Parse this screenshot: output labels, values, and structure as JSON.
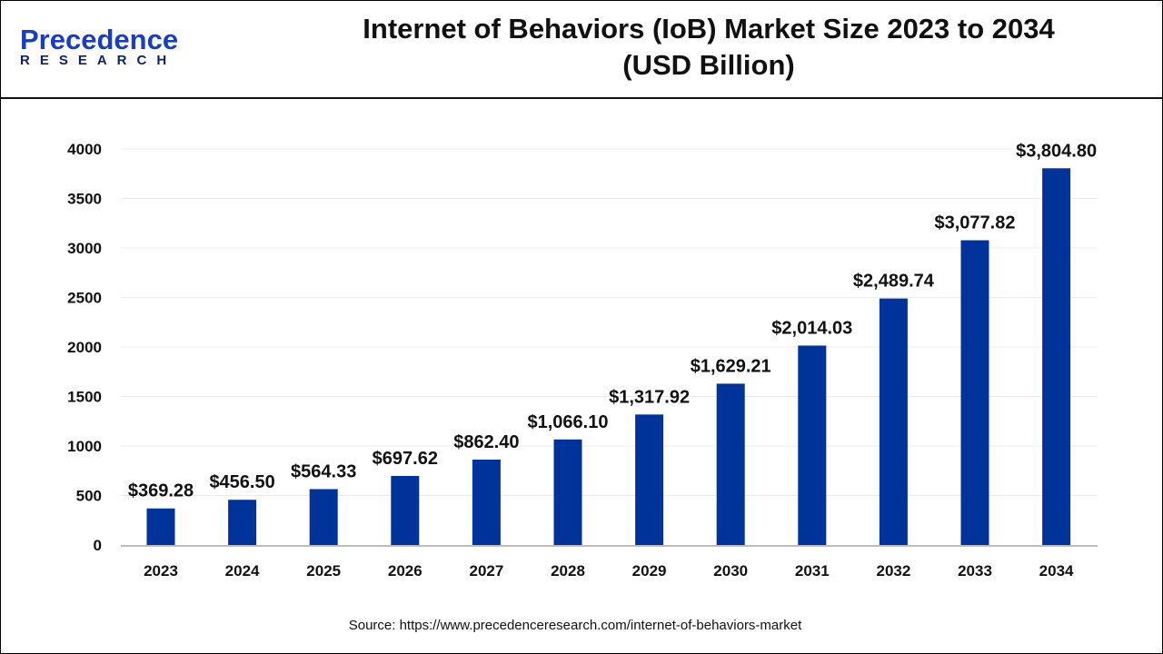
{
  "logo": {
    "brand": "Precedence",
    "sub": "RESEARCH"
  },
  "header": {
    "title_line1": "Internet of Behaviors (IoB) Market Size 2023 to 2034",
    "title_line2": "(USD Billion)"
  },
  "source": "Source: https://www.precedenceresearch.com/internet-of-behaviors-market",
  "chart_data": {
    "type": "bar",
    "title": "Internet of Behaviors (IoB) Market Size 2023 to 2034 (USD Billion)",
    "categories": [
      "2023",
      "2024",
      "2025",
      "2026",
      "2027",
      "2028",
      "2029",
      "2030",
      "2031",
      "2032",
      "2033",
      "2034"
    ],
    "values": [
      369.28,
      456.5,
      564.33,
      697.62,
      862.4,
      1066.1,
      1317.92,
      1629.21,
      2014.03,
      2489.74,
      3077.82,
      3804.8
    ],
    "data_labels": [
      "$369.28",
      "$456.50",
      "$564.33",
      "$697.62",
      "$862.40",
      "$1,066.10",
      "$1,317.92",
      "$1,629.21",
      "$2,014.03",
      "$2,489.74",
      "$3,077.82",
      "$3,804.80"
    ],
    "yticks": [
      0,
      500,
      1000,
      1500,
      2000,
      2500,
      3000,
      3500,
      4000
    ],
    "ylim": [
      0,
      4000
    ],
    "xlabel": "",
    "ylabel": "",
    "grid": true,
    "bar_color": "#003399"
  }
}
